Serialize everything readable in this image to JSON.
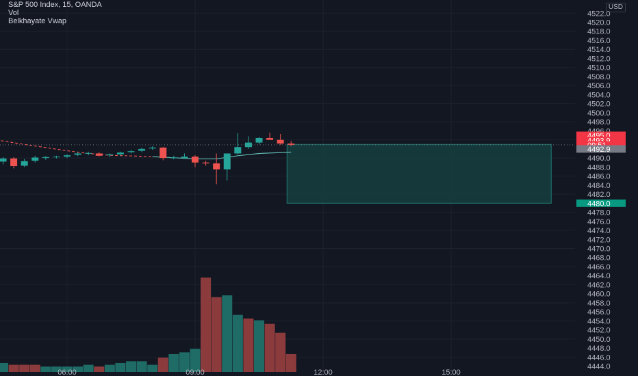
{
  "legend": {
    "symbol": "S&P 500 Index, 15, OANDA",
    "volume": "Vol",
    "indicator": "Belkhayate Vwap"
  },
  "price_axis": {
    "currency": "USD",
    "labels": [
      "4522.0",
      "4520.0",
      "4518.0",
      "4516.0",
      "4514.0",
      "4512.0",
      "4510.0",
      "4508.0",
      "4506.0",
      "4504.0",
      "4502.0",
      "4500.0",
      "4498.0",
      "4496.0",
      "4494.0",
      "4492.0",
      "4490.0",
      "4488.0",
      "4486.0",
      "4484.0",
      "4482.0",
      "4480.0",
      "4478.0",
      "4476.0",
      "4474.0",
      "4472.0",
      "4470.0",
      "4468.0",
      "4466.0",
      "4464.0",
      "4462.0",
      "4460.0",
      "4458.0",
      "4456.0",
      "4454.0",
      "4452.0",
      "4450.0",
      "4448.0",
      "4446.0",
      "4444.0"
    ],
    "tags": [
      {
        "text": "4495.0",
        "price": 4495.0,
        "color": "#f23645"
      },
      {
        "text": "4493.9",
        "price": 4493.9,
        "color": "#f23645"
      },
      {
        "text": "09:51",
        "price": 4492.9,
        "color": "#f23645"
      },
      {
        "text": "4492.9",
        "price": 4492.0,
        "color": "#787b86"
      },
      {
        "text": "4480.0",
        "price": 4480.0,
        "color": "#089981"
      }
    ]
  },
  "time_axis": {
    "labels": [
      "06:00",
      "09:00",
      "12:00",
      "15:00"
    ]
  },
  "colors": {
    "background": "#131722",
    "grid": "#1e222d",
    "up": "#26a69a",
    "down": "#ef5350",
    "up_volume": "#1f6b66",
    "down_volume": "#8c3b3d",
    "vwap": "#5fb8b0",
    "vwap_down": "#ef5350",
    "zone": "#16403e",
    "zone_border": "#1f7a72",
    "text": "#b2b5be"
  },
  "chart_data": {
    "type": "candlestick",
    "symbol": "S&P 500 Index",
    "interval": "15",
    "source": "OANDA",
    "y_range": [
      4444,
      4524
    ],
    "candles": [
      {
        "t": "04:00",
        "o": 4489.0,
        "h": 4489.8,
        "l": 4487.4,
        "c": 4488.0
      },
      {
        "t": "04:15",
        "o": 4488.2,
        "h": 4489.6,
        "l": 4487.6,
        "c": 4489.2
      },
      {
        "t": "04:30",
        "o": 4489.2,
        "h": 4490.2,
        "l": 4488.6,
        "c": 4489.9
      },
      {
        "t": "04:45",
        "o": 4489.9,
        "h": 4490.2,
        "l": 4487.7,
        "c": 4488.2
      },
      {
        "t": "05:00",
        "o": 4488.3,
        "h": 4489.8,
        "l": 4488.0,
        "c": 4489.3
      },
      {
        "t": "05:15",
        "o": 4489.4,
        "h": 4490.5,
        "l": 4489.0,
        "c": 4490.1
      },
      {
        "t": "05:30",
        "o": 4490.0,
        "h": 4490.4,
        "l": 4489.6,
        "c": 4490.2
      },
      {
        "t": "05:45",
        "o": 4490.2,
        "h": 4490.5,
        "l": 4489.9,
        "c": 4490.3
      },
      {
        "t": "06:00",
        "o": 4490.3,
        "h": 4490.8,
        "l": 4490.0,
        "c": 4490.6
      },
      {
        "t": "06:15",
        "o": 4490.7,
        "h": 4491.2,
        "l": 4490.4,
        "c": 4491.0
      },
      {
        "t": "06:30",
        "o": 4491.0,
        "h": 4491.4,
        "l": 4490.6,
        "c": 4491.1
      },
      {
        "t": "06:45",
        "o": 4491.0,
        "h": 4491.3,
        "l": 4490.3,
        "c": 4490.5
      },
      {
        "t": "07:00",
        "o": 4490.6,
        "h": 4491.0,
        "l": 4490.2,
        "c": 4490.8
      },
      {
        "t": "07:15",
        "o": 4490.8,
        "h": 4491.4,
        "l": 4490.5,
        "c": 4491.2
      },
      {
        "t": "07:30",
        "o": 4491.3,
        "h": 4491.8,
        "l": 4491.0,
        "c": 4491.5
      },
      {
        "t": "07:45",
        "o": 4491.6,
        "h": 4492.3,
        "l": 4491.3,
        "c": 4492.0
      },
      {
        "t": "08:00",
        "o": 4492.1,
        "h": 4492.6,
        "l": 4491.8,
        "c": 4492.3
      },
      {
        "t": "08:15",
        "o": 4492.3,
        "h": 4492.4,
        "l": 4489.5,
        "c": 4490.0
      },
      {
        "t": "08:30",
        "o": 4490.0,
        "h": 4490.5,
        "l": 4489.7,
        "c": 4490.1
      },
      {
        "t": "08:45",
        "o": 4490.0,
        "h": 4491.0,
        "l": 4489.8,
        "c": 4490.3
      },
      {
        "t": "09:00",
        "o": 4490.3,
        "h": 4490.6,
        "l": 4488.0,
        "c": 4489.0
      },
      {
        "t": "09:15",
        "o": 4489.0,
        "h": 4489.4,
        "l": 4488.3,
        "c": 4488.8
      },
      {
        "t": "09:30",
        "o": 4488.8,
        "h": 4491.0,
        "l": 4484.2,
        "c": 4487.5
      },
      {
        "t": "09:45",
        "o": 4487.5,
        "h": 4491.0,
        "l": 4485.0,
        "c": 4491.0
      },
      {
        "t": "10:00",
        "o": 4491.0,
        "h": 4495.5,
        "l": 4490.8,
        "c": 4492.4
      },
      {
        "t": "10:15",
        "o": 4492.4,
        "h": 4494.8,
        "l": 4492.0,
        "c": 4493.4
      },
      {
        "t": "10:30",
        "o": 4493.4,
        "h": 4494.7,
        "l": 4493.0,
        "c": 4494.4
      },
      {
        "t": "10:45",
        "o": 4494.4,
        "h": 4495.6,
        "l": 4494.0,
        "c": 4494.0
      },
      {
        "t": "11:00",
        "o": 4494.0,
        "h": 4495.3,
        "l": 4492.9,
        "c": 4493.2
      },
      {
        "t": "11:15",
        "o": 4493.2,
        "h": 4493.8,
        "l": 4492.6,
        "c": 4492.9
      }
    ],
    "volume": [
      {
        "v": 5,
        "up": false
      },
      {
        "v": 6,
        "up": true
      },
      {
        "v": 5,
        "up": true
      },
      {
        "v": 4,
        "up": false
      },
      {
        "v": 4,
        "up": false
      },
      {
        "v": 4,
        "up": false
      },
      {
        "v": 3,
        "up": true
      },
      {
        "v": 3,
        "up": true
      },
      {
        "v": 3,
        "up": true
      },
      {
        "v": 3,
        "up": true
      },
      {
        "v": 4,
        "up": true
      },
      {
        "v": 3,
        "up": false
      },
      {
        "v": 4,
        "up": true
      },
      {
        "v": 5,
        "up": true
      },
      {
        "v": 6,
        "up": true
      },
      {
        "v": 6,
        "up": true
      },
      {
        "v": 4,
        "up": true
      },
      {
        "v": 8,
        "up": false
      },
      {
        "v": 10,
        "up": true
      },
      {
        "v": 11,
        "up": true
      },
      {
        "v": 13,
        "up": true
      },
      {
        "v": 53,
        "up": false
      },
      {
        "v": 42,
        "up": false
      },
      {
        "v": 43,
        "up": true
      },
      {
        "v": 32,
        "up": true
      },
      {
        "v": 30,
        "up": false
      },
      {
        "v": 29,
        "up": true
      },
      {
        "v": 27,
        "up": false
      },
      {
        "v": 22,
        "up": false
      },
      {
        "v": 10,
        "up": false
      }
    ],
    "vwap": [
      {
        "t": "04:00",
        "p": 4494.5
      },
      {
        "t": "05:00",
        "p": 4493.0
      },
      {
        "t": "06:00",
        "p": 4491.6
      },
      {
        "t": "06:30",
        "p": 4491.0
      },
      {
        "t": "07:00",
        "p": 4490.6
      },
      {
        "t": "08:00",
        "p": 4490.3
      },
      {
        "t": "09:00",
        "p": 4489.8
      },
      {
        "t": "09:30",
        "p": 4489.8
      },
      {
        "t": "10:00",
        "p": 4490.5
      },
      {
        "t": "10:30",
        "p": 4491.0
      },
      {
        "t": "11:15",
        "p": 4491.3
      }
    ],
    "last_price_line": 4492.9,
    "zone": {
      "from_time": "11:15",
      "to_time": "17:15",
      "top": 4493.0,
      "bottom": 4480.0
    }
  }
}
